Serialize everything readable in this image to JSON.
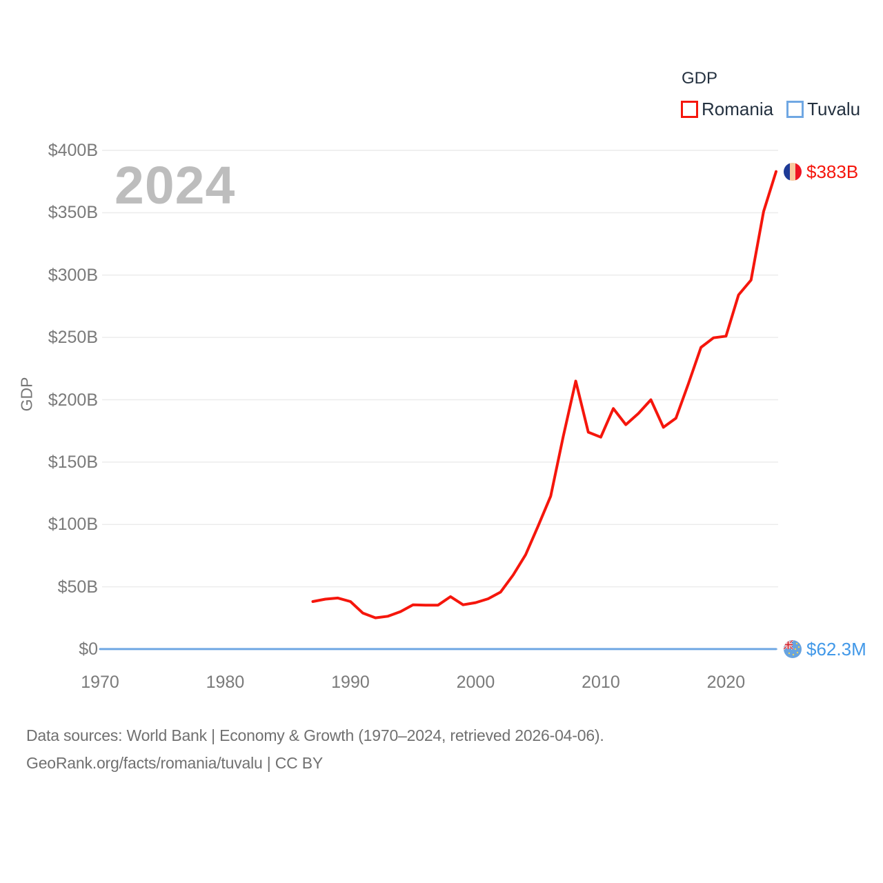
{
  "watermark": "2024",
  "legend": {
    "title": "GDP",
    "items": [
      {
        "label": "Romania",
        "color": "#f5160c"
      },
      {
        "label": "Tuvalu",
        "color": "#6fa7e3"
      }
    ]
  },
  "axes": {
    "y_title": "GDP",
    "y_ticks": [
      "$0",
      "$50B",
      "$100B",
      "$150B",
      "$200B",
      "$250B",
      "$300B",
      "$350B",
      "$400B"
    ],
    "x_ticks": [
      "1970",
      "1980",
      "1990",
      "2000",
      "2010",
      "2020"
    ]
  },
  "end_labels": [
    {
      "series": "Romania",
      "text": "$383B",
      "color": "#f5160c"
    },
    {
      "series": "Tuvalu",
      "text": "$62.3M",
      "color": "#4198e8"
    }
  ],
  "footer": {
    "line1": "Data sources: World Bank | Economy & Growth (1970–2024, retrieved 2026-04-06).",
    "line2": "GeoRank.org/facts/romania/tuvalu | CC BY"
  },
  "chart_data": {
    "type": "line",
    "title": "GDP",
    "xlabel": "",
    "ylabel": "GDP",
    "xlim": [
      1970,
      2024
    ],
    "ylim_billions": [
      0,
      400
    ],
    "y_tick_step_billions": 50,
    "grid": true,
    "legend_position": "top-right",
    "series": [
      {
        "name": "Romania",
        "color": "#f5160c",
        "unit": "USD billions",
        "end_label": "$383B",
        "years": [
          1987,
          1988,
          1989,
          1990,
          1991,
          1992,
          1993,
          1994,
          1995,
          1996,
          1997,
          1998,
          1999,
          2000,
          2001,
          2002,
          2003,
          2004,
          2005,
          2006,
          2007,
          2008,
          2009,
          2010,
          2011,
          2012,
          2013,
          2014,
          2015,
          2016,
          2017,
          2018,
          2019,
          2020,
          2021,
          2022,
          2023,
          2024
        ],
        "values_billions": [
          38.2,
          40.1,
          41.0,
          38.2,
          28.9,
          25.1,
          26.4,
          30.1,
          35.5,
          35.3,
          35.3,
          42.1,
          35.6,
          37.3,
          40.4,
          45.8,
          59.5,
          75.8,
          98.9,
          122.7,
          170.6,
          215.0,
          174.0,
          170.0,
          193.0,
          180.0,
          189.0,
          200.0,
          177.9,
          185.2,
          213.0,
          242.0,
          249.7,
          251.0,
          284.1,
          296.0,
          351.0,
          383.0
        ]
      },
      {
        "name": "Tuvalu",
        "color": "#6fa7e3",
        "unit": "USD billions",
        "end_label": "$62.3M",
        "years": [
          1970,
          2024
        ],
        "values_billions": [
          0.0623,
          0.0623
        ]
      }
    ]
  }
}
